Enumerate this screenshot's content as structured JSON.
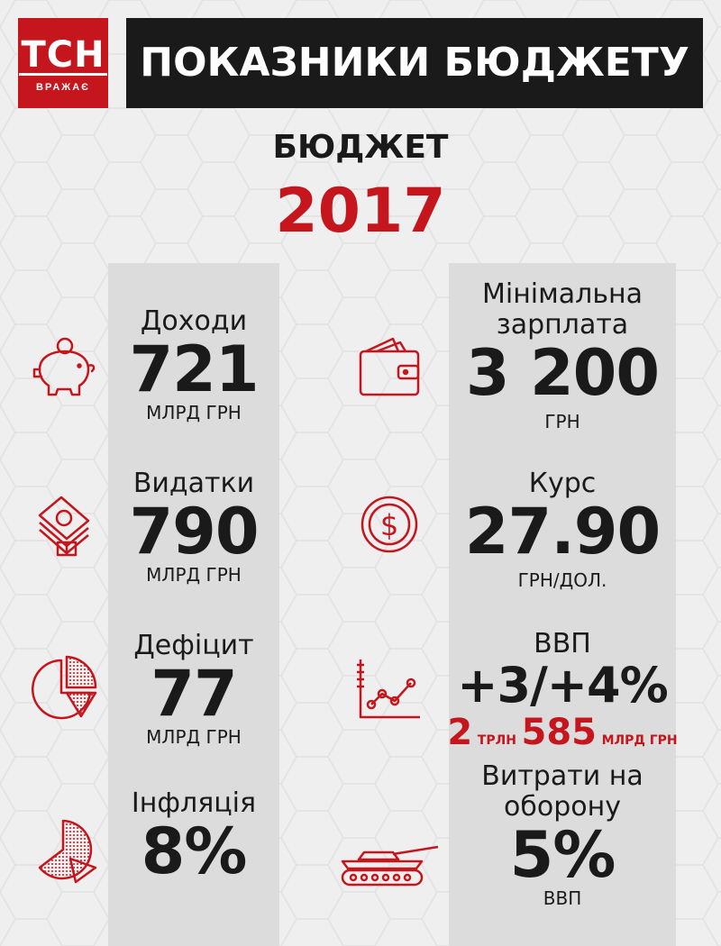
{
  "logo": {
    "brand": "ТСН",
    "tagline": "ВРАЖАЄ"
  },
  "header": {
    "title": "ПОКАЗНИКИ БЮДЖЕТУ"
  },
  "budget": {
    "label": "БЮДЖЕТ",
    "year": "2017"
  },
  "colors": {
    "accent": "#c5161d",
    "dark": "#1a1a1a",
    "column": "#dcdcdc",
    "background": "#efefef"
  },
  "left": {
    "revenue": {
      "icon": "piggy-bank-icon",
      "label": "Доходи",
      "value": "721",
      "unit": "МЛРД ГРН"
    },
    "expenses": {
      "icon": "money-stack-icon",
      "label": "Видатки",
      "value": "790",
      "unit": "МЛРД ГРН"
    },
    "deficit": {
      "icon": "pie-chart-icon",
      "label": "Дефіцит",
      "value": "77",
      "unit": "МЛРД ГРН"
    },
    "inflation": {
      "icon": "pie-slice-icon",
      "label": "Інфляція",
      "value": "8%"
    }
  },
  "right": {
    "min_wage": {
      "icon": "wallet-icon",
      "label_line1": "Мінімальна",
      "label_line2": "зарплата",
      "value": "3 200",
      "unit": "ГРН"
    },
    "rate": {
      "icon": "dollar-coin-icon",
      "label": "Курс",
      "value": "27.90",
      "unit": "ГРН/ДОЛ."
    },
    "gdp": {
      "icon": "line-chart-icon",
      "label": "ВВП",
      "value": "+3/+4%",
      "amount_trillion": "2",
      "trillion_unit": "ТРЛН",
      "amount_billion": "585",
      "billion_unit": "МЛРД ГРН"
    },
    "defense": {
      "icon": "tank-icon",
      "label_line1": "Витрати на",
      "label_line2": "оборону",
      "value": "5%",
      "unit": "ВВП"
    }
  }
}
